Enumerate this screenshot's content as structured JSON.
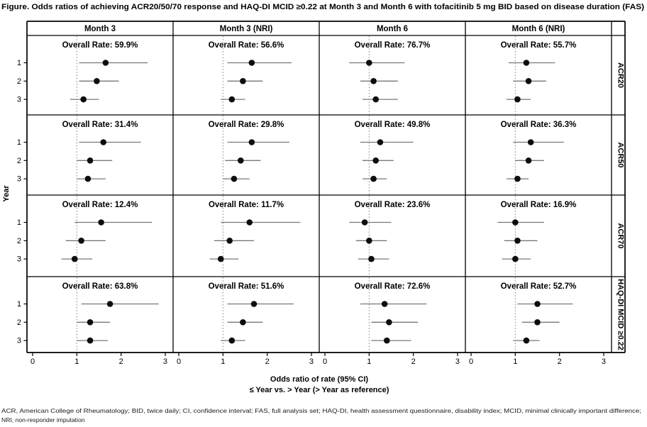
{
  "figure": {
    "title": "Figure. Odds ratios of achieving ACR20/50/70 response and HAQ-DI MCID ≥0.22 at Month 3 and Month 6 with tofacitinib 5 mg BID based on disease duration (FAS)",
    "footnote_line1": "ACR, American College of Rheumatology; BID, twice daily; CI, confidence interval; FAS, full analysis set; HAQ-DI, health assessment questionnaire, disability index; MCID, minimal clinically important difference;",
    "footnote_line2": "NRI, non-responder imputation"
  },
  "chart_data": {
    "type": "scatter",
    "subtype": "forest-plot-grid",
    "columns": [
      "Month 3",
      "Month 3 (NRI)",
      "Month 6",
      "Month 6 (NRI)"
    ],
    "rows": [
      "ACR20",
      "ACR50",
      "ACR70",
      "HAQ-DI MCID ≥0.22"
    ],
    "x_axis": {
      "label": "Odds ratio of rate (95% CI)",
      "sublabel": "≤ Year vs. > Year (> Year as reference)",
      "ticks": [
        "0",
        "1",
        "2",
        "3"
      ],
      "range": [
        0,
        3
      ],
      "reference_line": 1
    },
    "y_axis": {
      "label": "Year",
      "categories": [
        "1",
        "2",
        "3"
      ]
    },
    "panels": [
      {
        "row": "ACR20",
        "column": "Month 3",
        "overall_rate_label": "Overall Rate: 59.9%",
        "points": [
          {
            "year": "1",
            "or": 1.65,
            "ci_low": 1.05,
            "ci_high": 2.6
          },
          {
            "year": "2",
            "or": 1.45,
            "ci_low": 1.05,
            "ci_high": 1.95
          },
          {
            "year": "3",
            "or": 1.15,
            "ci_low": 0.85,
            "ci_high": 1.5
          }
        ]
      },
      {
        "row": "ACR20",
        "column": "Month 3 (NRI)",
        "overall_rate_label": "Overall Rate: 56.6%",
        "points": [
          {
            "year": "1",
            "or": 1.65,
            "ci_low": 1.1,
            "ci_high": 2.55
          },
          {
            "year": "2",
            "or": 1.45,
            "ci_low": 1.1,
            "ci_high": 1.9
          },
          {
            "year": "3",
            "or": 1.2,
            "ci_low": 0.95,
            "ci_high": 1.5
          }
        ]
      },
      {
        "row": "ACR20",
        "column": "Month 6",
        "overall_rate_label": "Overall Rate: 76.7%",
        "points": [
          {
            "year": "1",
            "or": 1.0,
            "ci_low": 0.55,
            "ci_high": 1.8
          },
          {
            "year": "2",
            "or": 1.1,
            "ci_low": 0.8,
            "ci_high": 1.65
          },
          {
            "year": "3",
            "or": 1.15,
            "ci_low": 0.85,
            "ci_high": 1.65
          }
        ]
      },
      {
        "row": "ACR20",
        "column": "Month 6 (NRI)",
        "overall_rate_label": "Overall Rate: 55.7%",
        "points": [
          {
            "year": "1",
            "or": 1.25,
            "ci_low": 0.85,
            "ci_high": 1.9
          },
          {
            "year": "2",
            "or": 1.3,
            "ci_low": 0.95,
            "ci_high": 1.7
          },
          {
            "year": "3",
            "or": 1.05,
            "ci_low": 0.8,
            "ci_high": 1.35
          }
        ]
      },
      {
        "row": "ACR50",
        "column": "Month 3",
        "overall_rate_label": "Overall Rate: 31.4%",
        "points": [
          {
            "year": "1",
            "or": 1.6,
            "ci_low": 1.05,
            "ci_high": 2.45
          },
          {
            "year": "2",
            "or": 1.3,
            "ci_low": 1.0,
            "ci_high": 1.8
          },
          {
            "year": "3",
            "or": 1.25,
            "ci_low": 1.0,
            "ci_high": 1.65
          }
        ]
      },
      {
        "row": "ACR50",
        "column": "Month 3 (NRI)",
        "overall_rate_label": "Overall Rate: 29.8%",
        "points": [
          {
            "year": "1",
            "or": 1.65,
            "ci_low": 1.1,
            "ci_high": 2.5
          },
          {
            "year": "2",
            "or": 1.4,
            "ci_low": 1.05,
            "ci_high": 1.85
          },
          {
            "year": "3",
            "or": 1.25,
            "ci_low": 1.0,
            "ci_high": 1.6
          }
        ]
      },
      {
        "row": "ACR50",
        "column": "Month 6",
        "overall_rate_label": "Overall Rate: 49.8%",
        "points": [
          {
            "year": "1",
            "or": 1.25,
            "ci_low": 0.8,
            "ci_high": 2.0
          },
          {
            "year": "2",
            "or": 1.15,
            "ci_low": 0.85,
            "ci_high": 1.55
          },
          {
            "year": "3",
            "or": 1.1,
            "ci_low": 0.85,
            "ci_high": 1.4
          }
        ]
      },
      {
        "row": "ACR50",
        "column": "Month 6 (NRI)",
        "overall_rate_label": "Overall Rate: 36.3%",
        "points": [
          {
            "year": "1",
            "or": 1.35,
            "ci_low": 0.95,
            "ci_high": 2.1
          },
          {
            "year": "2",
            "or": 1.3,
            "ci_low": 1.0,
            "ci_high": 1.65
          },
          {
            "year": "3",
            "or": 1.05,
            "ci_low": 0.8,
            "ci_high": 1.3
          }
        ]
      },
      {
        "row": "ACR70",
        "column": "Month 3",
        "overall_rate_label": "Overall Rate: 12.4%",
        "points": [
          {
            "year": "1",
            "or": 1.55,
            "ci_low": 0.95,
            "ci_high": 2.7
          },
          {
            "year": "2",
            "or": 1.1,
            "ci_low": 0.75,
            "ci_high": 1.65
          },
          {
            "year": "3",
            "or": 0.95,
            "ci_low": 0.65,
            "ci_high": 1.35
          }
        ]
      },
      {
        "row": "ACR70",
        "column": "Month 3 (NRI)",
        "overall_rate_label": "Overall Rate: 11.7%",
        "points": [
          {
            "year": "1",
            "or": 1.6,
            "ci_low": 0.95,
            "ci_high": 2.75
          },
          {
            "year": "2",
            "or": 1.15,
            "ci_low": 0.8,
            "ci_high": 1.7
          },
          {
            "year": "3",
            "or": 0.95,
            "ci_low": 0.7,
            "ci_high": 1.35
          }
        ]
      },
      {
        "row": "ACR70",
        "column": "Month 6",
        "overall_rate_label": "Overall Rate: 23.6%",
        "points": [
          {
            "year": "1",
            "or": 0.9,
            "ci_low": 0.55,
            "ci_high": 1.5
          },
          {
            "year": "2",
            "or": 1.0,
            "ci_low": 0.7,
            "ci_high": 1.4
          },
          {
            "year": "3",
            "or": 1.05,
            "ci_low": 0.75,
            "ci_high": 1.45
          }
        ]
      },
      {
        "row": "ACR70",
        "column": "Month 6 (NRI)",
        "overall_rate_label": "Overall Rate: 16.9%",
        "points": [
          {
            "year": "1",
            "or": 1.0,
            "ci_low": 0.6,
            "ci_high": 1.65
          },
          {
            "year": "2",
            "or": 1.05,
            "ci_low": 0.75,
            "ci_high": 1.5
          },
          {
            "year": "3",
            "or": 1.0,
            "ci_low": 0.7,
            "ci_high": 1.35
          }
        ]
      },
      {
        "row": "HAQ-DI MCID ≥0.22",
        "column": "Month 3",
        "overall_rate_label": "Overall Rate: 63.8%",
        "points": [
          {
            "year": "1",
            "or": 1.75,
            "ci_low": 1.1,
            "ci_high": 2.85
          },
          {
            "year": "2",
            "or": 1.3,
            "ci_low": 1.0,
            "ci_high": 1.75
          },
          {
            "year": "3",
            "or": 1.3,
            "ci_low": 1.0,
            "ci_high": 1.7
          }
        ]
      },
      {
        "row": "HAQ-DI MCID ≥0.22",
        "column": "Month 3 (NRI)",
        "overall_rate_label": "Overall Rate: 51.6%",
        "points": [
          {
            "year": "1",
            "or": 1.7,
            "ci_low": 1.1,
            "ci_high": 2.6
          },
          {
            "year": "2",
            "or": 1.45,
            "ci_low": 1.1,
            "ci_high": 1.9
          },
          {
            "year": "3",
            "or": 1.2,
            "ci_low": 0.95,
            "ci_high": 1.5
          }
        ]
      },
      {
        "row": "HAQ-DI MCID ≥0.22",
        "column": "Month 6",
        "overall_rate_label": "Overall Rate: 72.6%",
        "points": [
          {
            "year": "1",
            "or": 1.35,
            "ci_low": 0.8,
            "ci_high": 2.3
          },
          {
            "year": "2",
            "or": 1.45,
            "ci_low": 1.05,
            "ci_high": 2.1
          },
          {
            "year": "3",
            "or": 1.4,
            "ci_low": 1.05,
            "ci_high": 1.95
          }
        ]
      },
      {
        "row": "HAQ-DI MCID ≥0.22",
        "column": "Month 6 (NRI)",
        "overall_rate_label": "Overall Rate: 52.7%",
        "points": [
          {
            "year": "1",
            "or": 1.5,
            "ci_low": 1.05,
            "ci_high": 2.3
          },
          {
            "year": "2",
            "or": 1.5,
            "ci_low": 1.15,
            "ci_high": 2.0
          },
          {
            "year": "3",
            "or": 1.25,
            "ci_low": 0.95,
            "ci_high": 1.55
          }
        ]
      }
    ],
    "colors": {
      "point": "#0d0d0d",
      "ci_line": "#787878",
      "reference_line": "#909090",
      "border": "#000000"
    },
    "layout_hints": {
      "grid": "off",
      "legend": "none",
      "reference_line_style": "dotted"
    }
  }
}
